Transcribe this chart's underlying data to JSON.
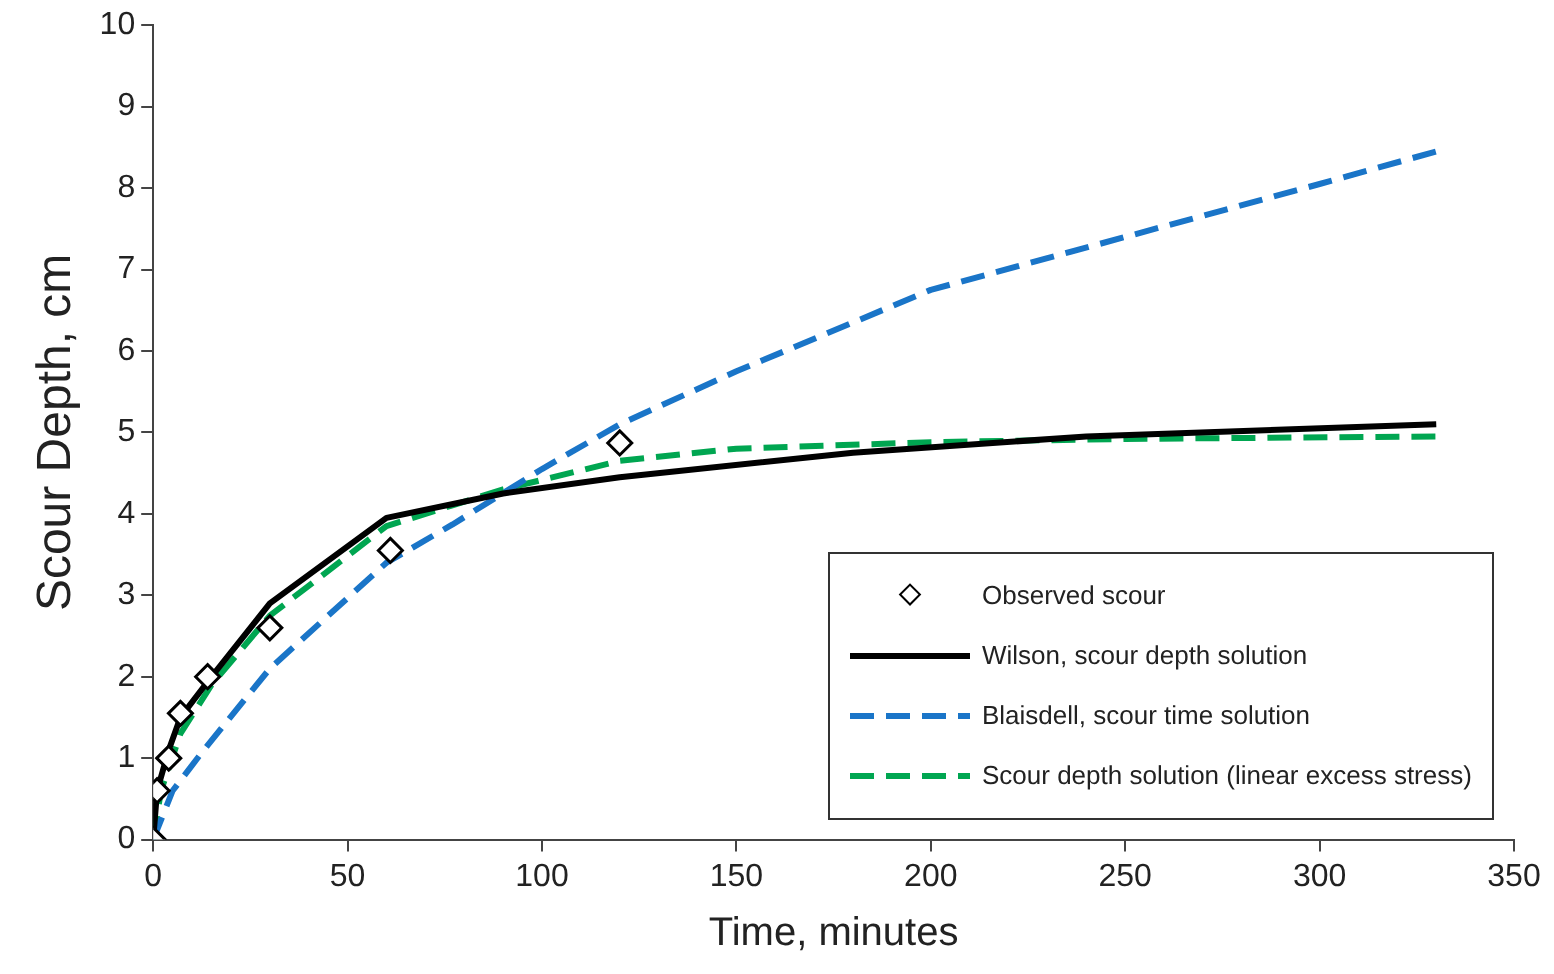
{
  "chart_data": {
    "type": "line",
    "xlabel": "Time, minutes",
    "ylabel": "Scour Depth, cm",
    "xlim": [
      0,
      350
    ],
    "xticks": [
      0,
      50,
      100,
      150,
      200,
      250,
      300,
      350
    ],
    "ylim": [
      0,
      10
    ],
    "yticks": [
      0,
      1,
      2,
      3,
      4,
      5,
      6,
      7,
      8,
      9,
      10
    ],
    "grid": false,
    "legend": "bottom right",
    "series": [
      {
        "name": "Observed scour",
        "type": "scatter",
        "marker": "diamond",
        "color": "#000000",
        "x": [
          0,
          1,
          4,
          7,
          14,
          30,
          61,
          120
        ],
        "values": [
          0,
          0.6,
          1.0,
          1.55,
          2.0,
          2.6,
          3.55,
          4.87
        ]
      },
      {
        "name": "Wilson, scour depth solution",
        "marker": "none",
        "line_style": "solid",
        "color": "#000000",
        "x": [
          0,
          1,
          4,
          7,
          15,
          30,
          60,
          90,
          120,
          180,
          240,
          330
        ],
        "values": [
          0,
          0.6,
          1.1,
          1.5,
          2.0,
          2.9,
          3.95,
          4.25,
          4.45,
          4.75,
          4.95,
          5.1
        ]
      },
      {
        "name": "Blaisdell, scour time solution",
        "marker": "none",
        "line_style": "dashed",
        "color": "#1a75c8",
        "x": [
          0,
          5,
          13,
          30,
          60,
          77,
          100,
          120,
          150,
          200,
          250,
          300,
          330
        ],
        "values": [
          0,
          0.6,
          1.1,
          2.1,
          3.4,
          3.87,
          4.55,
          5.1,
          5.75,
          6.75,
          7.4,
          8.05,
          8.45
        ]
      },
      {
        "name": "Scour depth solution (linear excess stress)",
        "marker": "none",
        "line_style": "dashed",
        "color": "#00a651",
        "x": [
          0,
          2,
          7,
          15,
          30,
          60,
          90,
          120,
          150,
          200,
          250,
          330
        ],
        "values": [
          0,
          0.6,
          1.3,
          1.9,
          2.75,
          3.85,
          4.3,
          4.65,
          4.8,
          4.88,
          4.92,
          4.95
        ]
      }
    ]
  }
}
